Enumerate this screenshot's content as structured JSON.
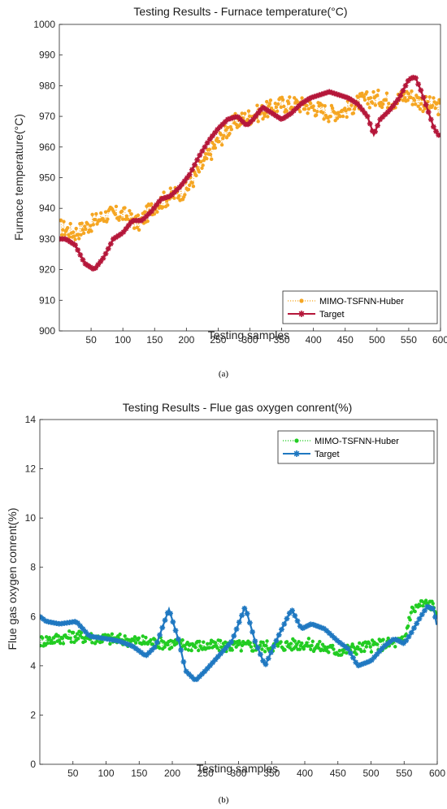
{
  "chart_data": [
    {
      "type": "line",
      "panel": "(a)",
      "title": "Testing Results - Furnace temperature(°C)",
      "xlabel": "Testing samples",
      "ylabel": "Furnace temperature(°C)",
      "xlim": [
        0,
        600
      ],
      "ylim": [
        900,
        1000
      ],
      "xticks": [
        50,
        100,
        150,
        200,
        250,
        300,
        350,
        400,
        450,
        500,
        550,
        600
      ],
      "yticks": [
        900,
        910,
        920,
        930,
        940,
        950,
        960,
        970,
        980,
        990,
        1000
      ],
      "grid": false,
      "legend_position": "bottom-right",
      "series": [
        {
          "name": "MIMO-TSFNN-Huber",
          "color": "#F5A623",
          "style": "dotted-dot",
          "x": [
            0,
            25,
            50,
            75,
            100,
            125,
            150,
            175,
            200,
            225,
            250,
            275,
            300,
            325,
            350,
            375,
            400,
            425,
            450,
            475,
            500,
            525,
            550,
            575,
            600
          ],
          "y": [
            934,
            932,
            935,
            938,
            938,
            935,
            941,
            944,
            946,
            954,
            962,
            968,
            970,
            972,
            974,
            974,
            973,
            971,
            972,
            975,
            976,
            975,
            977,
            974,
            973
          ]
        },
        {
          "name": "Target",
          "color": "#B5173A",
          "style": "solid-star",
          "x": [
            0,
            10,
            25,
            40,
            55,
            70,
            85,
            100,
            115,
            130,
            145,
            160,
            175,
            190,
            205,
            220,
            235,
            250,
            265,
            280,
            295,
            305,
            320,
            335,
            350,
            365,
            380,
            395,
            410,
            425,
            440,
            455,
            470,
            485,
            495,
            505,
            520,
            535,
            550,
            560,
            570,
            580,
            590,
            600
          ],
          "y": [
            930,
            930,
            928,
            922,
            920,
            924,
            930,
            932,
            936,
            936,
            939,
            943,
            944,
            947,
            951,
            957,
            962,
            966,
            969,
            970,
            967,
            969,
            973,
            971,
            969,
            971,
            974,
            976,
            977,
            978,
            977,
            976,
            974,
            970,
            964,
            969,
            972,
            976,
            982,
            983,
            978,
            972,
            966,
            963
          ]
        }
      ]
    },
    {
      "type": "line",
      "panel": "(b)",
      "title": "Testing Results - Flue gas oxygen conrent(%)",
      "xlabel": "Testing samples",
      "ylabel": "Flue gas oxygen conrent(%)",
      "xlim": [
        0,
        600
      ],
      "ylim": [
        0,
        14
      ],
      "xticks": [
        50,
        100,
        150,
        200,
        250,
        300,
        350,
        400,
        450,
        500,
        550,
        600
      ],
      "yticks": [
        0,
        2,
        4,
        6,
        8,
        10,
        12,
        14
      ],
      "grid": false,
      "legend_position": "top-right",
      "series": [
        {
          "name": "MIMO-TSFNN-Huber",
          "color": "#22CC22",
          "style": "dotted-dot",
          "x": [
            0,
            50,
            100,
            150,
            200,
            250,
            300,
            350,
            400,
            450,
            500,
            550,
            560,
            575,
            590,
            600
          ],
          "y": [
            5.0,
            5.2,
            5.1,
            5.0,
            4.9,
            4.8,
            4.8,
            4.8,
            4.9,
            4.6,
            4.8,
            5.0,
            6.2,
            6.5,
            6.5,
            6.2
          ]
        },
        {
          "name": "Target",
          "color": "#1F78C1",
          "style": "solid-star",
          "x": [
            0,
            10,
            30,
            55,
            75,
            100,
            120,
            140,
            160,
            175,
            195,
            210,
            220,
            235,
            250,
            270,
            290,
            310,
            325,
            340,
            360,
            380,
            395,
            410,
            430,
            450,
            465,
            480,
            500,
            520,
            535,
            550,
            560,
            575,
            585,
            595,
            600
          ],
          "y": [
            6.0,
            5.8,
            5.7,
            5.8,
            5.2,
            5.1,
            5.0,
            4.8,
            4.4,
            4.8,
            6.3,
            5.0,
            3.8,
            3.4,
            3.8,
            4.4,
            5.0,
            6.4,
            5.0,
            4.0,
            5.2,
            6.3,
            5.5,
            5.7,
            5.5,
            5.0,
            4.7,
            4.0,
            4.2,
            4.8,
            5.1,
            4.9,
            5.3,
            6.0,
            6.4,
            6.3,
            5.5
          ]
        }
      ]
    }
  ],
  "captions": [
    "(a)",
    "(b)"
  ]
}
